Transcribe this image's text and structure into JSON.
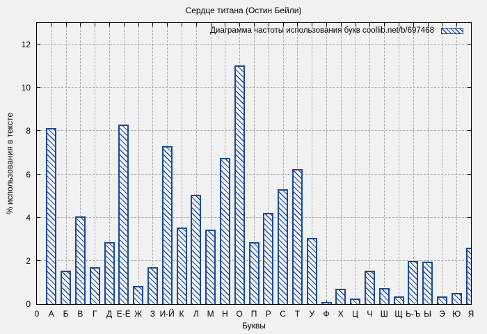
{
  "title": "Сердце титана (Остин Бейли)",
  "legend": "Диаграмма частоты использования букв coollib.net/b/697468",
  "axes": {
    "ylabel": "% использования в тексте",
    "xlabel": "Буквы",
    "yticks": [
      0,
      2,
      4,
      6,
      8,
      10,
      12
    ],
    "x_origin": "0"
  },
  "colors": {
    "bar": "#17499d",
    "grid": "#a8a8a8",
    "background": "#f1f1f1"
  },
  "chart_data": {
    "type": "bar",
    "title": "Сердце титана (Остин Бейли)",
    "legend": "Диаграмма частоты использования букв coollib.net/b/697468",
    "xlabel": "Буквы",
    "ylabel": "% использования в тексте",
    "ylim": [
      0,
      13
    ],
    "yticks": [
      0,
      2,
      4,
      6,
      8,
      10,
      12
    ],
    "grid": true,
    "legend_position": "top-right",
    "bar_style": "blue diagonal hatch on light background",
    "categories": [
      "А",
      "Б",
      "В",
      "Г",
      "Д",
      "Е-Ё",
      "Ж",
      "З",
      "И-Й",
      "К",
      "Л",
      "М",
      "Н",
      "О",
      "П",
      "Р",
      "С",
      "Т",
      "У",
      "Ф",
      "Х",
      "Ц",
      "Ч",
      "Ш",
      "Щ",
      "Ь-Ъ",
      "Ы",
      "Э",
      "Ю",
      "Я"
    ],
    "values": [
      8.15,
      1.55,
      4.05,
      1.7,
      2.85,
      8.3,
      0.85,
      1.7,
      7.3,
      3.55,
      5.05,
      3.45,
      6.75,
      11.05,
      2.85,
      4.2,
      5.3,
      6.25,
      3.05,
      0.1,
      0.7,
      0.25,
      1.55,
      0.75,
      0.35,
      2.0,
      1.95,
      0.35,
      0.5,
      2.6
    ]
  }
}
